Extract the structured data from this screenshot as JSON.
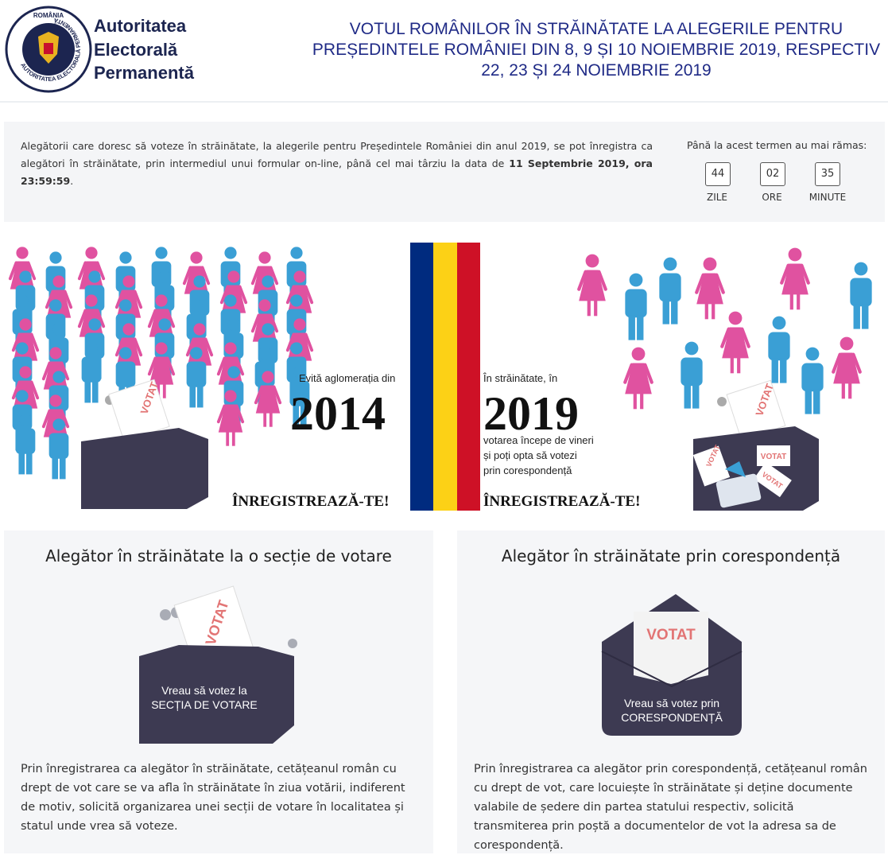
{
  "logo": {
    "top_text": "ROMÂNIA",
    "ring_text": "AUTORITATEA ELECTORALĂ PERMANENTĂ"
  },
  "header": {
    "org_name": [
      "Autoritatea",
      "Electorală",
      "Permanentă"
    ],
    "title": [
      "VOTUL ROMÂNILOR ÎN STRĂINĂTATE LA ALEGERILE PENTRU",
      "PREȘEDINTELE ROMÂNIEI DIN 8, 9 ȘI 10 NOIEMBRIE 2019, RESPECTIV",
      "22, 23 ȘI 24 NOIEMBRIE 2019"
    ]
  },
  "notice": {
    "text": "Alegătorii care doresc să voteze în străinătate, la alegerile pentru Președintele României din anul 2019, se pot înregistra ca alegători în străinătate, prin intermediul unui formular on-line, până cel mai târziu la data de ",
    "deadline": "11 Septembrie 2019, ora 23:59:59",
    "text_end": "."
  },
  "countdown": {
    "label": "Până la acest termen au mai rămas:",
    "items": [
      {
        "value": "44",
        "unit": "ZILE"
      },
      {
        "value": "02",
        "unit": "ORE"
      },
      {
        "value": "35",
        "unit": "MINUTE"
      }
    ]
  },
  "banner": {
    "left_intro": "Evită aglomerația din",
    "left_year": "2014",
    "left_cta": "ÎNREGISTREAZĂ-TE!",
    "right_intro": "În străinătate, în",
    "right_year": "2019",
    "right_lines": [
      "votarea începe de vineri",
      "și poți opta să votezi",
      "prin corespondență"
    ],
    "right_cta": "ÎNREGISTREAZĂ-TE!",
    "ballot_labels": [
      "VOTAT",
      "VOTAT",
      "VOTAT",
      "VOTAT",
      "VOTAT"
    ]
  },
  "cards": [
    {
      "title": "Alegător în străinătate la o secție de votare",
      "ballot_label": "VOTAT",
      "button": [
        "Vreau să votez la",
        "SECȚIA DE VOTARE"
      ],
      "description": "Prin înregistrarea ca alegător în străinătate, cetățeanul român cu drept de vot care se va afla în străinătate în ziua votării, indiferent de motiv, solicită organizarea unei secții de votare în localitatea și statul unde vrea să voteze."
    },
    {
      "title": "Alegător în străinătate prin corespondență",
      "ballot_label": "VOTAT",
      "button": [
        "Vreau să votez prin",
        "CORESPONDENȚĂ"
      ],
      "description": "Prin înregistrarea ca alegător prin corespondență, cetățeanul român cu drept de vot, care locuiește în străinătate și deține documente valabile de ședere din partea statului respectiv, solicită transmiterea prin poștă a documentelor de vot la adresa sa de corespondență."
    }
  ]
}
